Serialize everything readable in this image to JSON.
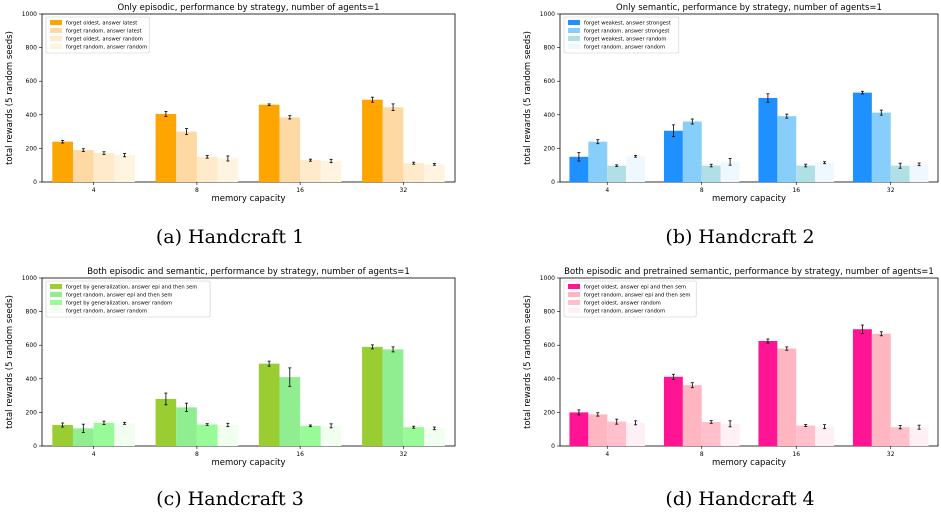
{
  "chart_data": [
    {
      "type": "bar",
      "title": "Only episodic, performance by strategy, number of agents=1",
      "caption": "(a) Handcraft 1",
      "xlabel": "memory capacity",
      "ylabel": "total rewards (5 random seeds)",
      "ylim": [
        0,
        1000
      ],
      "yticks": [
        0,
        200,
        400,
        600,
        800,
        1000
      ],
      "categories": [
        "4",
        "8",
        "16",
        "32"
      ],
      "legend_position": "top-left",
      "series": [
        {
          "name": "forget oldest, answer latest",
          "color": "#ffa500",
          "values": [
            240,
            405,
            460,
            490
          ],
          "errors": [
            8,
            15,
            5,
            15
          ]
        },
        {
          "name": "forget random, answer latest",
          "color": "#ffd9a3",
          "values": [
            190,
            300,
            385,
            445
          ],
          "errors": [
            8,
            18,
            10,
            20
          ]
        },
        {
          "name": "forget oldest, answer random",
          "color": "#ffeacb",
          "values": [
            172,
            150,
            130,
            112
          ],
          "errors": [
            8,
            8,
            6,
            6
          ]
        },
        {
          "name": "forget random, answer random",
          "color": "#fff4e0",
          "values": [
            160,
            140,
            125,
            105
          ],
          "errors": [
            10,
            15,
            10,
            5
          ]
        }
      ]
    },
    {
      "type": "bar",
      "title": "Only semantic, performance by strategy, number of agents=1",
      "caption": "(b) Handcraft 2",
      "xlabel": "memory capacity",
      "ylabel": "total rewards (5 random seeds)",
      "ylim": [
        0,
        1000
      ],
      "yticks": [
        0,
        200,
        400,
        600,
        800,
        1000
      ],
      "categories": [
        "4",
        "8",
        "16",
        "32"
      ],
      "legend_position": "top-left",
      "series": [
        {
          "name": "forget weakest, answer strongest",
          "color": "#1e90ff",
          "values": [
            150,
            305,
            500,
            532
          ],
          "errors": [
            25,
            35,
            25,
            8
          ]
        },
        {
          "name": "forget random, answer strongest",
          "color": "#87cefa",
          "values": [
            240,
            360,
            392,
            413
          ],
          "errors": [
            12,
            15,
            12,
            15
          ]
        },
        {
          "name": "forget weakest, answer random",
          "color": "#b0e0e6",
          "values": [
            97,
            98,
            98,
            97
          ],
          "errors": [
            5,
            8,
            8,
            15
          ]
        },
        {
          "name": "forget random, answer random",
          "color": "#f0f8ff",
          "values": [
            153,
            120,
            115,
            105
          ],
          "errors": [
            5,
            20,
            6,
            8
          ]
        }
      ]
    },
    {
      "type": "bar",
      "title": "Both episodic and semantic, performance by strategy, number of agents=1",
      "caption": "(c) Handcraft 3",
      "xlabel": "memory capacity",
      "ylabel": "total rewards (5 random seeds)",
      "ylim": [
        0,
        1000
      ],
      "yticks": [
        0,
        200,
        400,
        600,
        800,
        1000
      ],
      "categories": [
        "4",
        "8",
        "16",
        "32"
      ],
      "legend_position": "top-left",
      "series": [
        {
          "name": "forget by generalization, answer epi and then sem",
          "color": "#9acd32",
          "values": [
            125,
            280,
            490,
            590
          ],
          "errors": [
            12,
            35,
            15,
            12
          ]
        },
        {
          "name": "forget random, answer epi and then sem",
          "color": "#90ee90",
          "values": [
            105,
            230,
            410,
            575
          ],
          "errors": [
            25,
            25,
            55,
            15
          ]
        },
        {
          "name": "forget by generalization, answer random",
          "color": "#98fb98",
          "values": [
            138,
            128,
            120,
            112
          ],
          "errors": [
            10,
            5,
            5,
            6
          ]
        },
        {
          "name": "forget random, answer random",
          "color": "#f0fff0",
          "values": [
            135,
            125,
            120,
            105
          ],
          "errors": [
            6,
            10,
            12,
            8
          ]
        }
      ]
    },
    {
      "type": "bar",
      "title": "Both episodic and pretrained semantic, performance by strategy, number of agents=1",
      "caption": "(d) Handcraft 4",
      "xlabel": "memory capacity",
      "ylabel": "total rewards (5 random seeds)",
      "ylim": [
        0,
        1000
      ],
      "yticks": [
        0,
        200,
        400,
        600,
        800,
        1000
      ],
      "categories": [
        "4",
        "8",
        "16",
        "32"
      ],
      "legend_position": "top-left",
      "series": [
        {
          "name": "forget oldest, answer epi and then sem",
          "color": "#ff1493",
          "values": [
            200,
            412,
            625,
            695
          ],
          "errors": [
            15,
            15,
            12,
            25
          ]
        },
        {
          "name": "forget random, answer epi and then sem",
          "color": "#ffb6c1",
          "values": [
            188,
            362,
            580,
            668
          ],
          "errors": [
            10,
            15,
            10,
            12
          ]
        },
        {
          "name": "forget oldest, answer random",
          "color": "#ffc0cb",
          "values": [
            145,
            143,
            122,
            112
          ],
          "errors": [
            15,
            8,
            6,
            10
          ]
        },
        {
          "name": "forget random, answer random",
          "color": "#fff0f5",
          "values": [
            138,
            132,
            115,
            112
          ],
          "errors": [
            12,
            18,
            12,
            12
          ]
        }
      ]
    }
  ]
}
